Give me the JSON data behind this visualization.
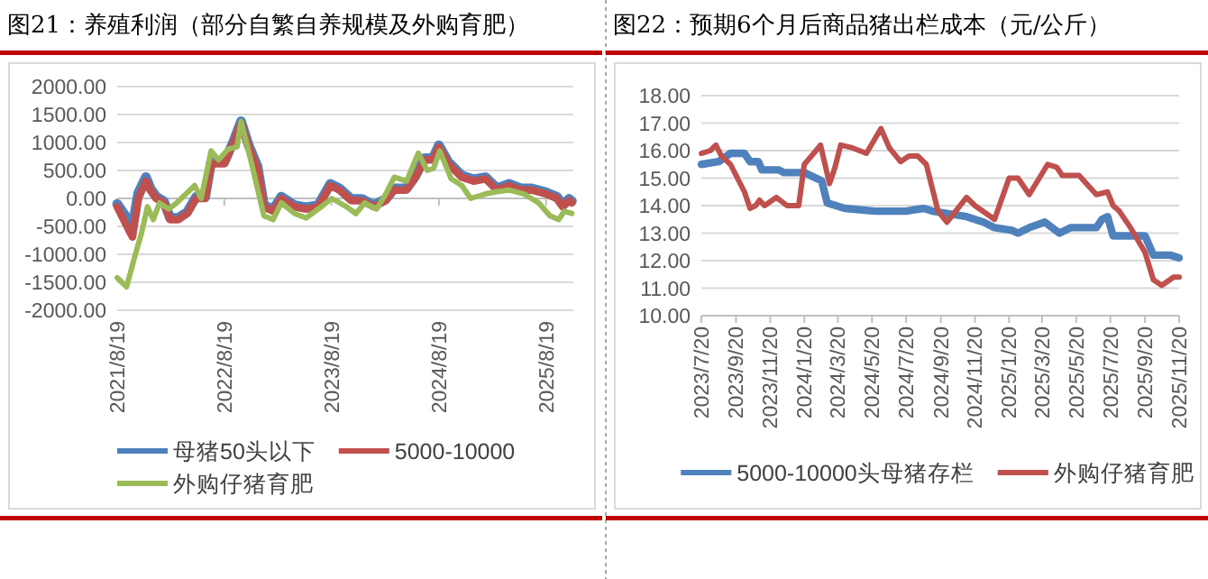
{
  "chart_data": [
    {
      "type": "line",
      "title": "图21：养殖利润（部分自繁自养规模及外购育肥）",
      "grid": "y",
      "legend": "bottom",
      "xlim": [
        "2021-08-19",
        "2025-11-20"
      ],
      "xticks": [
        {
          "value": "2021-08-19",
          "label": "2021/8/19"
        },
        {
          "value": "2022-08-19",
          "label": "2022/8/19"
        },
        {
          "value": "2023-08-19",
          "label": "2023/8/19"
        },
        {
          "value": "2024-08-19",
          "label": "2024/8/19"
        },
        {
          "value": "2025-08-19",
          "label": "2025/8/19"
        }
      ],
      "ylim": [
        -2000,
        2000
      ],
      "yticks": [
        {
          "value": -2000,
          "label": "-2000.00"
        },
        {
          "value": -1500,
          "label": "-1500.00"
        },
        {
          "value": -1000,
          "label": "-1000.00"
        },
        {
          "value": -500,
          "label": "-500.00"
        },
        {
          "value": 0,
          "label": "0.00"
        },
        {
          "value": 500,
          "label": "500.00"
        },
        {
          "value": 1000,
          "label": "1000.00"
        },
        {
          "value": 1500,
          "label": "1500.00"
        },
        {
          "value": 2000,
          "label": "2000.00"
        }
      ],
      "series": [
        {
          "name": "母猪50头以下",
          "color": "#4f81bd",
          "x": [
            "2021-08-19",
            "2021-09-25",
            "2021-10-10",
            "2021-10-30",
            "2021-11-25",
            "2021-12-10",
            "2021-12-30",
            "2022-01-25",
            "2022-02-15",
            "2022-03-15",
            "2022-04-15",
            "2022-05-15",
            "2022-06-15",
            "2022-07-05",
            "2022-08-19",
            "2022-09-20",
            "2022-10-15",
            "2022-11-10",
            "2022-12-10",
            "2023-01-01",
            "2023-02-01",
            "2023-03-01",
            "2023-04-15",
            "2023-05-25",
            "2023-07-05",
            "2023-08-15",
            "2023-09-15",
            "2023-10-25",
            "2023-12-01",
            "2024-01-10",
            "2024-02-20",
            "2024-03-20",
            "2024-05-01",
            "2024-06-01",
            "2024-07-01",
            "2024-07-30",
            "2024-08-19",
            "2024-09-20",
            "2024-11-05",
            "2024-12-15",
            "2025-01-25",
            "2025-03-05",
            "2025-04-15",
            "2025-05-25",
            "2025-07-01",
            "2025-08-19",
            "2025-09-25",
            "2025-10-15",
            "2025-11-05",
            "2025-11-15"
          ],
          "values": [
            -100,
            -380,
            -500,
            100,
            380,
            180,
            30,
            -50,
            -350,
            -350,
            -240,
            30,
            30,
            650,
            650,
            1030,
            1380,
            950,
            570,
            -120,
            -200,
            30,
            -120,
            -160,
            -120,
            260,
            180,
            -10,
            -10,
            -120,
            -10,
            180,
            180,
            410,
            720,
            720,
            950,
            650,
            410,
            340,
            380,
            180,
            260,
            180,
            180,
            110,
            30,
            -120,
            -10,
            -50
          ]
        },
        {
          "name": "5000-10000",
          "color": "#c0504d",
          "x": [
            "2021-08-19",
            "2021-09-25",
            "2021-10-10",
            "2021-10-30",
            "2021-11-25",
            "2021-12-10",
            "2021-12-30",
            "2022-01-25",
            "2022-02-15",
            "2022-03-15",
            "2022-04-15",
            "2022-05-15",
            "2022-06-15",
            "2022-07-05",
            "2022-08-19",
            "2022-09-20",
            "2022-10-15",
            "2022-11-10",
            "2022-12-10",
            "2023-01-01",
            "2023-02-01",
            "2023-03-01",
            "2023-04-15",
            "2023-05-25",
            "2023-07-05",
            "2023-08-15",
            "2023-09-15",
            "2023-10-25",
            "2023-12-01",
            "2024-01-10",
            "2024-02-20",
            "2024-03-20",
            "2024-05-01",
            "2024-06-01",
            "2024-07-01",
            "2024-07-30",
            "2024-08-19",
            "2024-09-20",
            "2024-11-05",
            "2024-12-15",
            "2025-01-25",
            "2025-03-05",
            "2025-04-15",
            "2025-05-25",
            "2025-07-01",
            "2025-08-19",
            "2025-09-25",
            "2025-10-15",
            "2025-11-05",
            "2025-11-15"
          ],
          "values": [
            -150,
            -540,
            -690,
            0,
            310,
            150,
            0,
            -80,
            -380,
            -380,
            -270,
            0,
            0,
            620,
            620,
            1000,
            1350,
            920,
            540,
            -150,
            -230,
            0,
            -150,
            -190,
            -150,
            230,
            150,
            -40,
            -40,
            -150,
            -40,
            150,
            150,
            380,
            690,
            690,
            920,
            620,
            380,
            310,
            350,
            150,
            230,
            150,
            150,
            80,
            0,
            -150,
            -40,
            -80
          ]
        },
        {
          "name": "外购仔猪育肥",
          "color": "#9bbb59",
          "x": [
            "2021-08-19",
            "2021-09-20",
            "2021-10-20",
            "2021-11-10",
            "2021-11-30",
            "2021-12-20",
            "2022-01-10",
            "2022-02-10",
            "2022-03-10",
            "2022-04-10",
            "2022-05-10",
            "2022-06-01",
            "2022-07-05",
            "2022-07-30",
            "2022-09-01",
            "2022-10-01",
            "2022-10-15",
            "2022-11-20",
            "2023-01-01",
            "2023-02-01",
            "2023-03-01",
            "2023-04-15",
            "2023-05-25",
            "2023-07-05",
            "2023-08-20",
            "2023-10-10",
            "2023-11-10",
            "2023-12-10",
            "2024-01-20",
            "2024-02-20",
            "2024-03-20",
            "2024-05-01",
            "2024-06-10",
            "2024-07-10",
            "2024-08-01",
            "2024-08-22",
            "2024-09-30",
            "2024-11-05",
            "2024-12-05",
            "2025-01-25",
            "2025-03-05",
            "2025-04-15",
            "2025-06-05",
            "2025-07-25",
            "2025-09-01",
            "2025-10-01",
            "2025-10-20",
            "2025-11-15"
          ],
          "values": [
            -1420,
            -1580,
            -1000,
            -620,
            -150,
            -380,
            -80,
            -190,
            -80,
            80,
            230,
            0,
            850,
            690,
            880,
            920,
            1380,
            620,
            -310,
            -380,
            -80,
            -270,
            -350,
            -190,
            0,
            -150,
            -270,
            -80,
            -190,
            80,
            380,
            310,
            810,
            500,
            540,
            850,
            350,
            230,
            0,
            80,
            120,
            150,
            80,
            -80,
            -310,
            -380,
            -230,
            -270
          ]
        }
      ]
    },
    {
      "type": "line",
      "title": "图22：预期6个月后商品猪出栏成本（元/公斤）",
      "grid": "y",
      "legend": "bottom",
      "xlim": [
        "2023-07-20",
        "2025-11-20"
      ],
      "xticks": [
        {
          "value": "2023-07-20",
          "label": "2023/7/20"
        },
        {
          "value": "2023-09-20",
          "label": "2023/9/20"
        },
        {
          "value": "2023-11-20",
          "label": "2023/11/20"
        },
        {
          "value": "2024-01-20",
          "label": "2024/1/20"
        },
        {
          "value": "2024-03-20",
          "label": "2024/3/20"
        },
        {
          "value": "2024-05-20",
          "label": "2024/5/20"
        },
        {
          "value": "2024-07-20",
          "label": "2024/7/20"
        },
        {
          "value": "2024-09-20",
          "label": "2024/9/20"
        },
        {
          "value": "2024-11-20",
          "label": "2024/11/20"
        },
        {
          "value": "2025-01-20",
          "label": "2025/1/20"
        },
        {
          "value": "2025-03-20",
          "label": "2025/3/20"
        },
        {
          "value": "2025-05-20",
          "label": "2025/5/20"
        },
        {
          "value": "2025-07-20",
          "label": "2025/7/20"
        },
        {
          "value": "2025-09-20",
          "label": "2025/9/20"
        },
        {
          "value": "2025-11-20",
          "label": "2025/11/20"
        }
      ],
      "ylim": [
        10,
        18
      ],
      "yticks": [
        {
          "value": 10,
          "label": "10.00"
        },
        {
          "value": 11,
          "label": "11.00"
        },
        {
          "value": 12,
          "label": "12.00"
        },
        {
          "value": 13,
          "label": "13.00"
        },
        {
          "value": 14,
          "label": "14.00"
        },
        {
          "value": 15,
          "label": "15.00"
        },
        {
          "value": 16,
          "label": "16.00"
        },
        {
          "value": 17,
          "label": "17.00"
        },
        {
          "value": 18,
          "label": "18.00"
        }
      ],
      "series": [
        {
          "name": "5000-10000头母猪存栏",
          "color": "#4f81bd",
          "x": [
            "2023-07-20",
            "2023-08-20",
            "2023-09-10",
            "2023-10-05",
            "2023-10-15",
            "2023-10-30",
            "2023-11-05",
            "2023-12-05",
            "2023-12-15",
            "2024-01-20",
            "2024-02-20",
            "2024-03-01",
            "2024-04-01",
            "2024-05-25",
            "2024-07-20",
            "2024-08-20",
            "2024-09-05",
            "2024-11-05",
            "2024-12-05",
            "2024-12-25",
            "2025-01-25",
            "2025-02-05",
            "2025-02-25",
            "2025-03-25",
            "2025-04-20",
            "2025-05-10",
            "2025-06-25",
            "2025-07-05",
            "2025-07-15",
            "2025-07-25",
            "2025-09-20",
            "2025-10-05",
            "2025-11-05",
            "2025-11-20"
          ],
          "values": [
            15.5,
            15.6,
            15.9,
            15.9,
            15.6,
            15.6,
            15.3,
            15.3,
            15.2,
            15.2,
            14.9,
            14.1,
            13.9,
            13.8,
            13.8,
            13.9,
            13.8,
            13.6,
            13.4,
            13.2,
            13.1,
            13.0,
            13.2,
            13.4,
            13.0,
            13.2,
            13.2,
            13.5,
            13.6,
            12.9,
            12.9,
            12.2,
            12.2,
            12.1
          ]
        },
        {
          "name": "外购仔猪育肥",
          "color": "#c0504d",
          "x": [
            "2023-07-20",
            "2023-08-05",
            "2023-08-15",
            "2023-08-25",
            "2023-09-10",
            "2023-10-05",
            "2023-10-15",
            "2023-10-25",
            "2023-11-01",
            "2023-11-10",
            "2023-12-01",
            "2023-12-20",
            "2024-01-10",
            "2024-01-20",
            "2024-02-10",
            "2024-02-18",
            "2024-03-05",
            "2024-03-15",
            "2024-03-25",
            "2024-04-15",
            "2024-05-10",
            "2024-06-05",
            "2024-06-20",
            "2024-07-10",
            "2024-07-25",
            "2024-08-10",
            "2024-08-25",
            "2024-09-15",
            "2024-10-01",
            "2024-11-05",
            "2024-11-20",
            "2024-12-25",
            "2025-01-20",
            "2025-02-05",
            "2025-02-25",
            "2025-03-30",
            "2025-04-15",
            "2025-04-25",
            "2025-05-25",
            "2025-06-25",
            "2025-07-15",
            "2025-07-25",
            "2025-08-05",
            "2025-08-25",
            "2025-09-20",
            "2025-10-05",
            "2025-10-20",
            "2025-11-10",
            "2025-11-20"
          ],
          "values": [
            15.9,
            16.0,
            16.2,
            15.8,
            15.5,
            14.5,
            13.9,
            14.0,
            14.2,
            14.0,
            14.3,
            14.0,
            14.0,
            15.5,
            16.0,
            16.2,
            14.8,
            15.4,
            16.2,
            16.1,
            15.9,
            16.8,
            16.1,
            15.6,
            15.8,
            15.8,
            15.5,
            13.8,
            13.4,
            14.3,
            14.0,
            13.5,
            15.0,
            15.0,
            14.4,
            15.5,
            15.4,
            15.1,
            15.1,
            14.4,
            14.5,
            14.0,
            13.8,
            13.2,
            12.3,
            11.3,
            11.1,
            11.4,
            11.4
          ]
        }
      ]
    }
  ]
}
